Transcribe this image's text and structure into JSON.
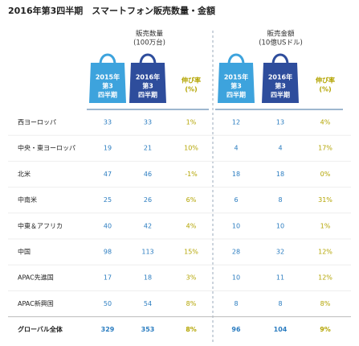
{
  "title": "2016年第3四半期　スマートフォン販売数量・金額",
  "groups": [
    {
      "label": "販売数量",
      "unit": "(100万台)",
      "columns": [
        [
          "2015年",
          "第3",
          "四半期"
        ],
        [
          "2016年",
          "第3",
          "四半期"
        ],
        [
          "伸び率",
          "(%)"
        ]
      ]
    },
    {
      "label": "販売金額",
      "unit": "(10億USドル)",
      "columns": [
        [
          "2015年",
          "第3",
          "四半期"
        ],
        [
          "2016年",
          "第3",
          "四半期"
        ],
        [
          "伸び率",
          "(%)"
        ]
      ]
    }
  ],
  "table": {
    "rows": [
      [
        "西ヨーロッパ",
        "33",
        "33",
        "1%",
        "12",
        "13",
        "4%"
      ],
      [
        "中央・東ヨーロッパ",
        "19",
        "21",
        "10%",
        "4",
        "4",
        "17%"
      ],
      [
        "北米",
        "47",
        "46",
        "-1%",
        "18",
        "18",
        "0%"
      ],
      [
        "中南米",
        "25",
        "26",
        "6%",
        "6",
        "8",
        "31%"
      ],
      [
        "中東＆アフリカ",
        "40",
        "42",
        "4%",
        "10",
        "10",
        "1%"
      ],
      [
        "中国",
        "98",
        "113",
        "15%",
        "28",
        "32",
        "12%"
      ],
      [
        "APAC先進国",
        "17",
        "18",
        "3%",
        "10",
        "11",
        "12%"
      ],
      [
        "APAC新興国",
        "50",
        "54",
        "8%",
        "8",
        "8",
        "8%"
      ],
      [
        "グローバル全体",
        "329",
        "353",
        "8%",
        "96",
        "104",
        "9%"
      ]
    ]
  }
}
